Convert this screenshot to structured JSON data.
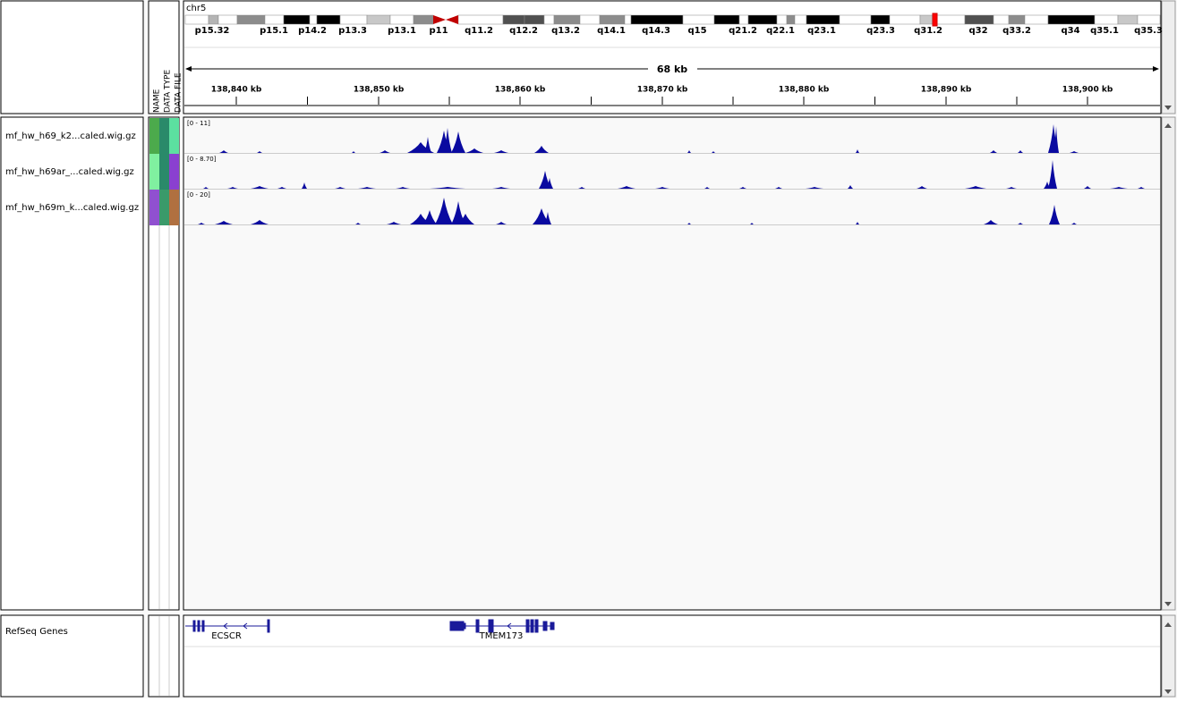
{
  "header": {
    "chromosome": "chr5",
    "cytobands": [
      "p15.32",
      "p15.1",
      "p14.2",
      "p13.3",
      "p13.1",
      "p11",
      "q11.2",
      "q12.2",
      "q13.2",
      "q14.1",
      "q14.3",
      "q15",
      "q21.2",
      "q22.1",
      "q23.1",
      "q23.3",
      "q31.2",
      "q32",
      "q33.2",
      "q34",
      "q35.1",
      "q35.3"
    ],
    "span": "68 kb",
    "ruler": [
      "138,840 kb",
      "138,850 kb",
      "138,860 kb",
      "138,870 kb",
      "138,880 kb",
      "138,890 kb",
      "138,900 kb"
    ]
  },
  "attribute_columns": [
    "NAME",
    "DATA TYPE",
    "DATA FILE"
  ],
  "tracks": [
    {
      "name": "mf_hw_h69_k2...caled.wig.gz",
      "range": "[0 - 11]"
    },
    {
      "name": "mf_hw_h69ar_...caled.wig.gz",
      "range": "[0 - 8.70]"
    },
    {
      "name": "mf_hw_h69m_k...caled.wig.gz",
      "range": "[0 - 20]"
    }
  ],
  "gene_track": {
    "name": "RefSeq Genes",
    "genes": [
      "ECSCR",
      "TMEM173"
    ]
  }
}
